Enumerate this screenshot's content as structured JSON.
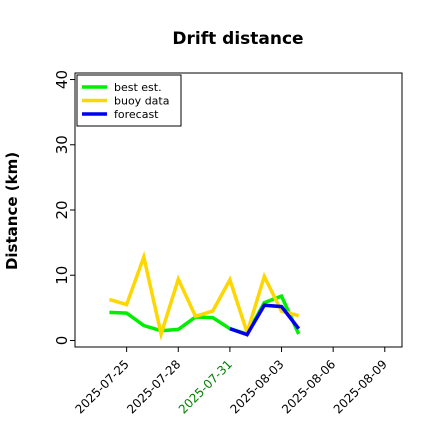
{
  "chart_data": {
    "type": "line",
    "title": "Drift distance",
    "xlabel": "",
    "ylabel": "Distance (km)",
    "xlim": [
      "2025-07-22",
      "2025-08-10"
    ],
    "ylim": [
      -1,
      41
    ],
    "yticks": [
      0,
      10,
      20,
      30,
      40
    ],
    "xticks": [
      "2025-07-25",
      "2025-07-28",
      "2025-07-31",
      "2025-08-03",
      "2025-08-06",
      "2025-08-09"
    ],
    "highlighted_xtick": "2025-07-31",
    "highlight_color": "#008000",
    "grid": false,
    "legend_position": "top-left",
    "series": [
      {
        "name": "best est.",
        "color": "#00ee00",
        "x": [
          "2025-07-24",
          "2025-07-25",
          "2025-07-26",
          "2025-07-27",
          "2025-07-28",
          "2025-07-29",
          "2025-07-30",
          "2025-07-31",
          "2025-08-01",
          "2025-08-02",
          "2025-08-03",
          "2025-08-04"
        ],
        "values": [
          4.3,
          4.2,
          2.3,
          1.5,
          1.7,
          3.6,
          3.5,
          1.8,
          1.0,
          5.8,
          6.8,
          1.0
        ]
      },
      {
        "name": "buoy data",
        "color": "#ffd700",
        "x": [
          "2025-07-24",
          "2025-07-25",
          "2025-07-26",
          "2025-07-27",
          "2025-07-28",
          "2025-07-29",
          "2025-07-30",
          "2025-07-31",
          "2025-08-01",
          "2025-08-02",
          "2025-08-03",
          "2025-08-04"
        ],
        "values": [
          6.3,
          5.5,
          12.8,
          1.0,
          9.4,
          3.7,
          4.5,
          9.3,
          1.2,
          9.8,
          4.5,
          3.8
        ]
      },
      {
        "name": "forecast",
        "color": "#0000ee",
        "x": [
          "2025-07-31",
          "2025-08-01",
          "2025-08-02",
          "2025-08-03",
          "2025-08-04"
        ],
        "values": [
          1.8,
          0.9,
          5.4,
          5.2,
          1.8
        ]
      }
    ]
  }
}
